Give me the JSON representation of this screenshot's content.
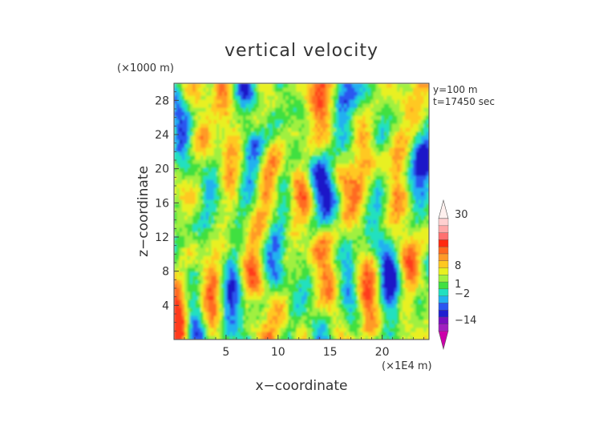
{
  "chart_data": {
    "type": "heatmap",
    "title": "vertical velocity",
    "xlabel": "x−coordinate",
    "ylabel": "z−coordinate",
    "x_unit": "(×1E4 m)",
    "y_unit": "(×1000 m)",
    "annotations": [
      "y=100 m",
      "t=17450 sec"
    ],
    "xlim": [
      0,
      24.5
    ],
    "ylim": [
      0,
      30
    ],
    "x_ticks": [
      5,
      10,
      15,
      20
    ],
    "y_ticks": [
      4,
      8,
      12,
      16,
      20,
      24,
      28
    ],
    "colorbar": {
      "labels": [
        {
          "value": 30,
          "text": "30"
        },
        {
          "value": 8,
          "text": "8"
        },
        {
          "value": 1,
          "text": "1"
        },
        {
          "value": -2,
          "text": "−2"
        },
        {
          "value": -14,
          "text": "−14"
        }
      ],
      "colors": [
        "#cc00aa",
        "#a020c0",
        "#7a10c0",
        "#2020d0",
        "#2a56f0",
        "#22b0f0",
        "#20e0c0",
        "#40e040",
        "#a0f040",
        "#e8f020",
        "#ffc820",
        "#ff9a28",
        "#ff6a20",
        "#ff2a10",
        "#ff7070",
        "#ffa8a8",
        "#ffd0d0",
        "#fff0ee"
      ]
    }
  }
}
